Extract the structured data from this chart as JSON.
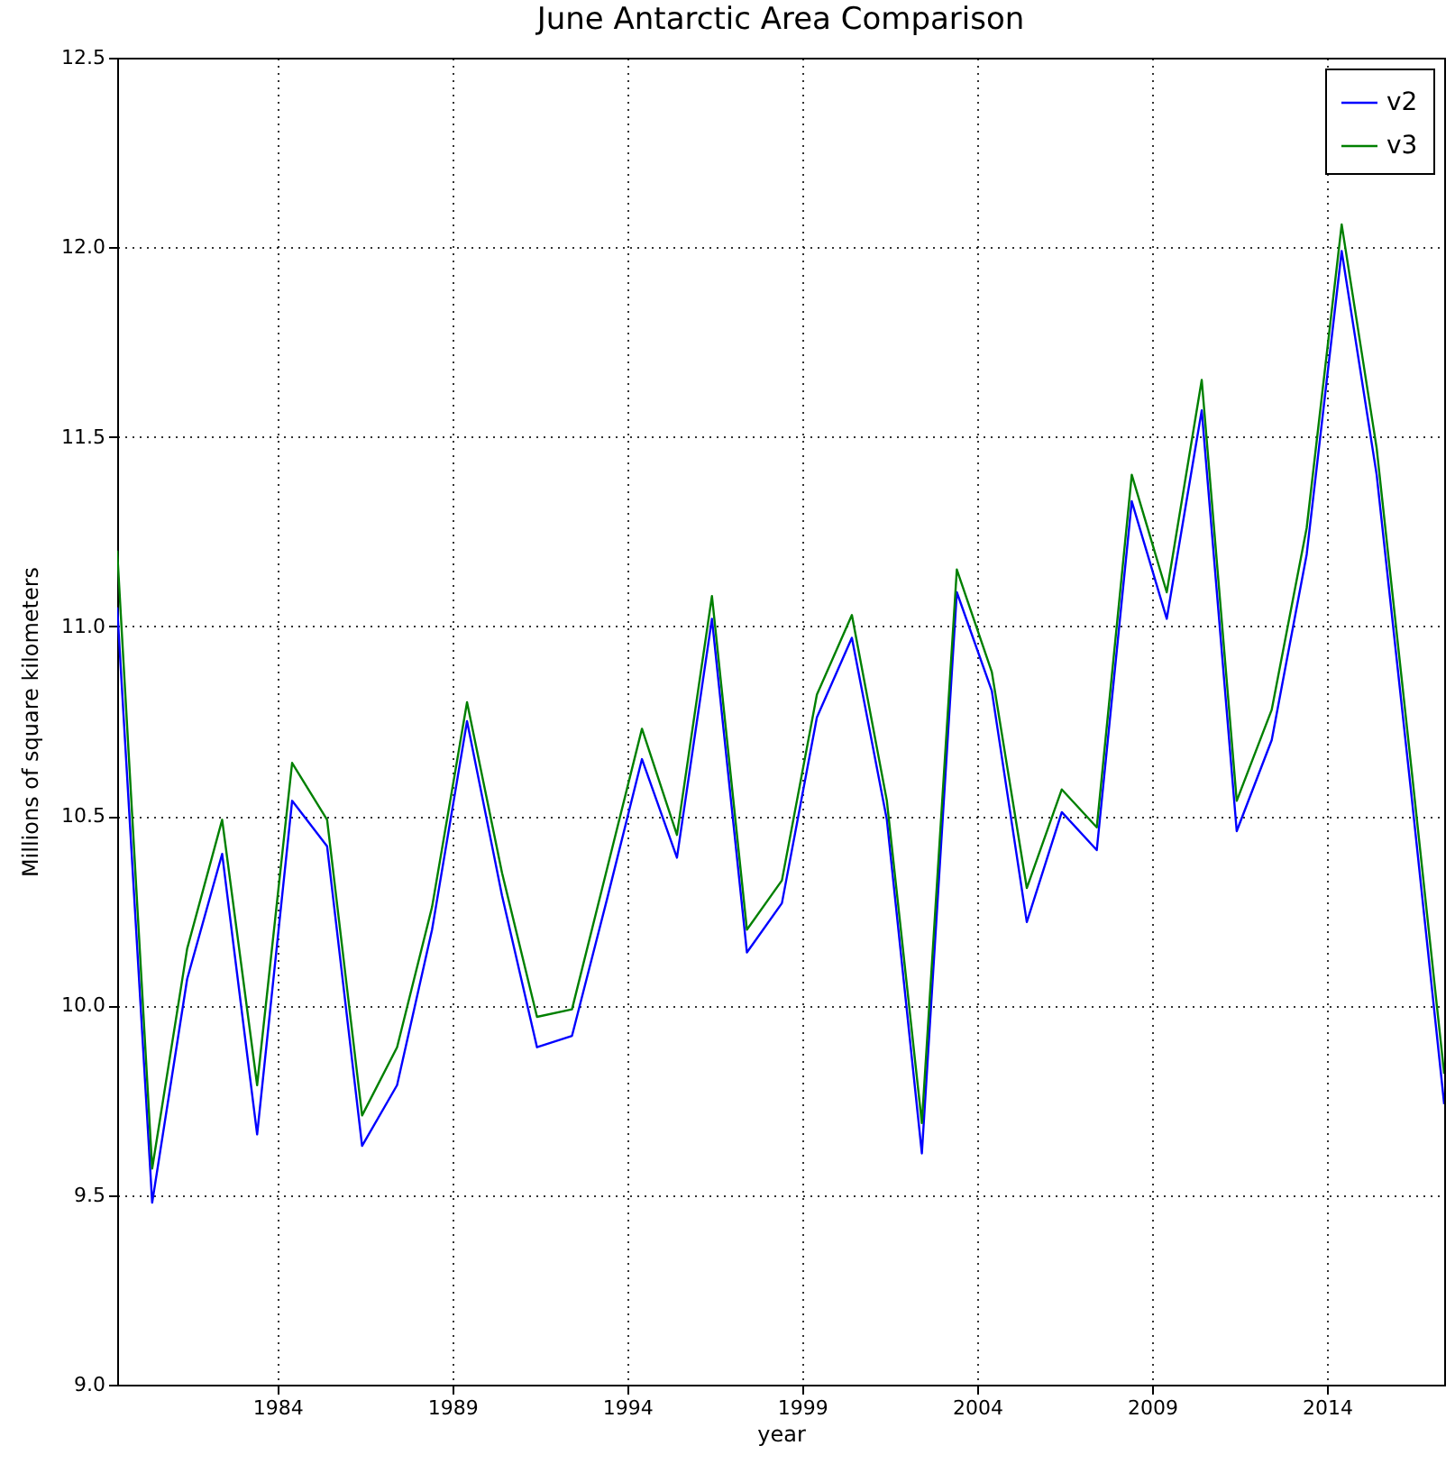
{
  "chart_data": {
    "type": "line",
    "title": "June Antarctic Area Comparison",
    "xlabel": "year",
    "ylabel": "Millions of square kilometers",
    "x": [
      1979.42,
      1980.42,
      1981.42,
      1982.42,
      1983.42,
      1984.42,
      1985.42,
      1986.42,
      1987.42,
      1988.42,
      1989.42,
      1990.42,
      1991.42,
      1992.42,
      1993.42,
      1994.42,
      1995.42,
      1996.42,
      1997.42,
      1998.42,
      1999.42,
      2000.42,
      2001.42,
      2002.42,
      2003.42,
      2004.42,
      2005.42,
      2006.42,
      2007.42,
      2008.42,
      2009.42,
      2010.42,
      2011.42,
      2012.42,
      2013.42,
      2014.42,
      2015.42,
      2016.42,
      2017.35
    ],
    "series": [
      {
        "name": "v2",
        "color": "#0000ff",
        "values": [
          11.05,
          9.48,
          10.07,
          10.4,
          9.66,
          10.54,
          10.42,
          9.63,
          9.79,
          10.2,
          10.75,
          10.29,
          9.89,
          9.92,
          10.28,
          10.65,
          10.39,
          11.02,
          10.14,
          10.27,
          10.76,
          10.97,
          10.49,
          9.61,
          11.09,
          10.83,
          10.22,
          10.51,
          10.41,
          11.33,
          11.02,
          11.57,
          10.46,
          10.7,
          11.19,
          11.99,
          11.4,
          10.55,
          9.74
        ]
      },
      {
        "name": "v3",
        "color": "#008000",
        "values": [
          11.2,
          9.57,
          10.15,
          10.49,
          9.79,
          10.64,
          10.49,
          9.71,
          9.89,
          10.26,
          10.8,
          10.35,
          9.97,
          9.99,
          10.36,
          10.73,
          10.45,
          11.08,
          10.2,
          10.33,
          10.82,
          11.03,
          10.54,
          9.69,
          11.15,
          10.88,
          10.31,
          10.57,
          10.47,
          11.4,
          11.09,
          11.65,
          10.54,
          10.78,
          11.26,
          12.06,
          11.47,
          10.62,
          9.82
        ]
      }
    ],
    "xlim": [
      1979.42,
      2017.35
    ],
    "xticks": [
      1984,
      1989,
      1994,
      1999,
      2004,
      2009,
      2014
    ],
    "ylim": [
      9.0,
      12.5
    ],
    "yticks": [
      {
        "value": 9,
        "label": "9.0"
      },
      9.5,
      {
        "value": 10,
        "label": "10.0"
      },
      10.5,
      {
        "value": 11,
        "label": "11.0"
      },
      11.5,
      {
        "value": 12,
        "label": "12.0"
      },
      12.5
    ],
    "grid": true,
    "legend": "top right",
    "line_style": "solid",
    "marker": "none"
  }
}
